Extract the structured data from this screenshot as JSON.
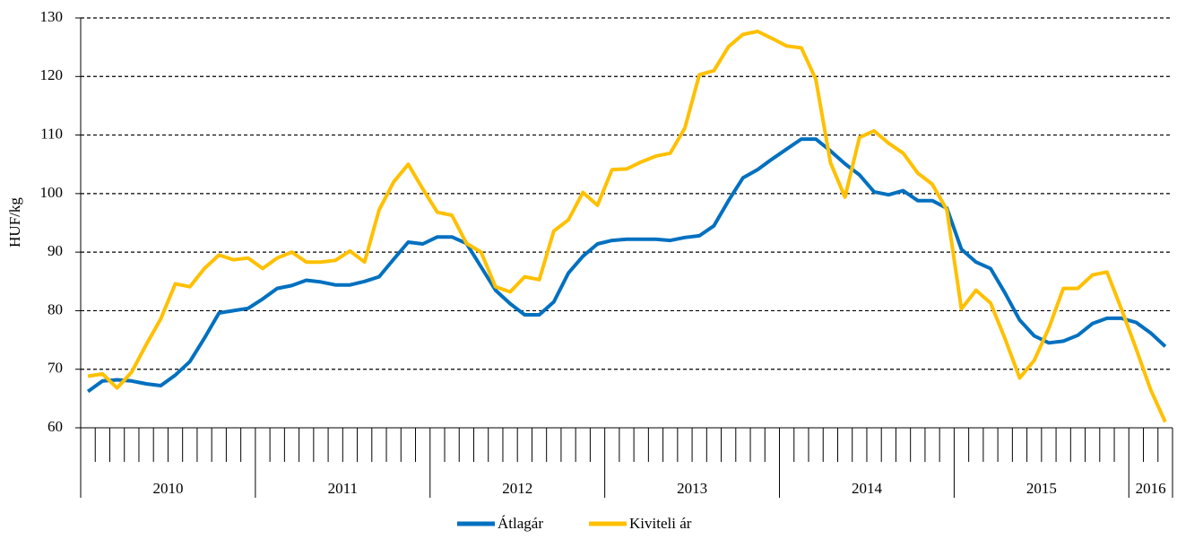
{
  "chart_data": {
    "type": "line",
    "y_label": "HUF/kg",
    "categories": [
      "2010",
      "2010",
      "2010",
      "2010",
      "2010",
      "2010",
      "2010",
      "2010",
      "2010",
      "2010",
      "2010",
      "2010",
      "2011",
      "2011",
      "2011",
      "2011",
      "2011",
      "2011",
      "2011",
      "2011",
      "2011",
      "2011",
      "2011",
      "2011",
      "2012",
      "2012",
      "2012",
      "2012",
      "2012",
      "2012",
      "2012",
      "2012",
      "2012",
      "2012",
      "2012",
      "2012",
      "2013",
      "2013",
      "2013",
      "2013",
      "2013",
      "2013",
      "2013",
      "2013",
      "2013",
      "2013",
      "2013",
      "2013",
      "2014",
      "2014",
      "2014",
      "2014",
      "2014",
      "2014",
      "2014",
      "2014",
      "2014",
      "2014",
      "2014",
      "2014",
      "2015",
      "2015",
      "2015",
      "2015",
      "2015",
      "2015",
      "2015",
      "2015",
      "2015",
      "2015",
      "2015",
      "2015",
      "2016",
      "2016",
      "2016"
    ],
    "series": [
      {
        "name": "Átlagár",
        "color": "#0070c0",
        "values": [
          66.2,
          68,
          68.2,
          68,
          67.5,
          67.2,
          69,
          71.3,
          75.3,
          79.6,
          80,
          80.4,
          82,
          83.8,
          84.3,
          85.2,
          84.9,
          84.4,
          84.4,
          85,
          85.8,
          88.8,
          91.7,
          91.4,
          92.6,
          92.6,
          91.5,
          87.5,
          83.5,
          81.2,
          79.3,
          79.3,
          81.5,
          86.4,
          89.3,
          91.4,
          92,
          92.2,
          92.2,
          92.2,
          92,
          92.5,
          92.8,
          94.5,
          98.8,
          102.7,
          104.1,
          105.9,
          107.6,
          109.3,
          109.3,
          107.3,
          105.1,
          103.2,
          100.3,
          99.8,
          100.5,
          98.8,
          98.8,
          97.5,
          90.5,
          88.3,
          87.2,
          83,
          78.4,
          75.7,
          74.5,
          74.8,
          75.8,
          77.8,
          78.7,
          78.7,
          78,
          76.2,
          73.9
        ]
      },
      {
        "name": "Kiviteli ár",
        "color": "#ffc000",
        "values": [
          68.8,
          69.2,
          66.8,
          69.5,
          74.2,
          78.6,
          84.6,
          84.1,
          87.2,
          89.5,
          88.7,
          89,
          87.2,
          89,
          90,
          88.3,
          88.3,
          88.6,
          90.2,
          88.3,
          97.2,
          102,
          105,
          100.8,
          96.8,
          96.3,
          91.5,
          90,
          84.1,
          83.2,
          85.8,
          85.3,
          93.6,
          95.5,
          100.2,
          98,
          104.1,
          104.2,
          105.4,
          106.4,
          106.9,
          111.2,
          120.3,
          121,
          125.1,
          127.2,
          127.7,
          126.5,
          125.2,
          124.9,
          119.5,
          105.3,
          99.4,
          109.6,
          110.7,
          108.6,
          106.9,
          103.5,
          101.6,
          97.2,
          80.3,
          83.5,
          81.3,
          75.2,
          68.5,
          71.5,
          77,
          83.8,
          83.8,
          86.1,
          86.6,
          80.2,
          73.5,
          66.5,
          61
        ]
      }
    ],
    "ylim": [
      60,
      130
    ],
    "yticks": [
      60,
      70,
      80,
      90,
      100,
      110,
      120,
      130
    ],
    "grid": true,
    "legend": "bottom"
  }
}
